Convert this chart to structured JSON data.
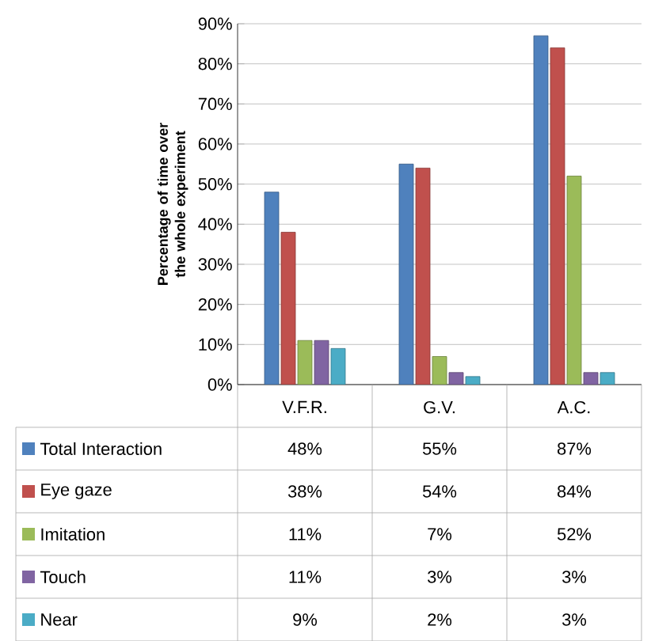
{
  "chart_data": {
    "type": "bar",
    "ylabel": "Percentage of time over the whole experiment",
    "categories": [
      "V.F.R.",
      "G.V.",
      "A.C."
    ],
    "series": [
      {
        "name": "Total Interaction",
        "color": "#4f81bd",
        "values": [
          48,
          55,
          87
        ],
        "value_labels": [
          "48%",
          "55%",
          "87%"
        ]
      },
      {
        "name": "Eye gaze",
        "color": "#c0504d",
        "values": [
          38,
          54,
          84
        ],
        "value_labels": [
          "38%",
          "54%",
          "84%"
        ]
      },
      {
        "name": "Imitation",
        "color": "#9bbb59",
        "values": [
          11,
          7,
          52
        ],
        "value_labels": [
          "11%",
          "7%",
          "52%"
        ]
      },
      {
        "name": "Touch",
        "color": "#8064a2",
        "values": [
          11,
          3,
          3
        ],
        "value_labels": [
          "11%",
          "3%",
          "3%"
        ]
      },
      {
        "name": "Near",
        "color": "#4bacc6",
        "values": [
          9,
          2,
          3
        ],
        "value_labels": [
          "9%",
          "2%",
          "3%"
        ]
      }
    ],
    "ylim": [
      0,
      90
    ],
    "yticks": [
      {
        "value": 0,
        "label": "0%"
      },
      {
        "value": 10,
        "label": "10%"
      },
      {
        "value": 20,
        "label": "20%"
      },
      {
        "value": 30,
        "label": "30%"
      },
      {
        "value": 40,
        "label": "40%"
      },
      {
        "value": 50,
        "label": "50%"
      },
      {
        "value": 60,
        "label": "60%"
      },
      {
        "value": 70,
        "label": "70%"
      },
      {
        "value": 80,
        "label": "80%"
      },
      {
        "value": 90,
        "label": "90%"
      }
    ],
    "grid": "y",
    "legend": "bottom"
  }
}
